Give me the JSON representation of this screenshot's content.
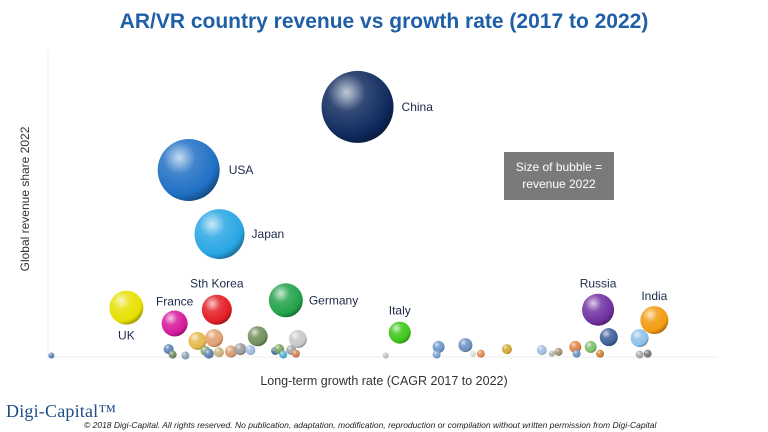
{
  "chart_data": {
    "type": "scatter",
    "title": "AR/VR country revenue vs growth rate (2017 to 2022)",
    "xlabel": "Long-term growth rate (CAGR 2017 to 2022)",
    "ylabel": "Global revenue share 2022",
    "xlim": [
      0,
      100
    ],
    "ylim": [
      0,
      100
    ],
    "note": "Size of bubble = revenue 2022",
    "legend": "none",
    "series": [
      {
        "name": "China",
        "x": 46.2,
        "y": 82.0,
        "size": 36,
        "color": "#0f2a5e"
      },
      {
        "name": "USA",
        "x": 21.0,
        "y": 61.3,
        "size": 31,
        "color": "#1f6fc4"
      },
      {
        "name": "Japan",
        "x": 25.6,
        "y": 40.3,
        "size": 25,
        "color": "#29a6e4"
      },
      {
        "name": "Sth Korea",
        "x": 25.2,
        "y": 15.5,
        "size": 15,
        "color": "#e31e24"
      },
      {
        "name": "Germany",
        "x": 35.5,
        "y": 18.6,
        "size": 17,
        "color": "#22a24a"
      },
      {
        "name": "UK",
        "x": 11.7,
        "y": 16.2,
        "size": 17,
        "color": "#e6e000"
      },
      {
        "name": "France",
        "x": 18.9,
        "y": 11.0,
        "size": 13,
        "color": "#d6199c"
      },
      {
        "name": "Italy",
        "x": 52.5,
        "y": 8.0,
        "size": 11,
        "color": "#3cc61a"
      },
      {
        "name": "Russia",
        "x": 82.1,
        "y": 15.5,
        "size": 16,
        "color": "#7030a0"
      },
      {
        "name": "India",
        "x": 90.5,
        "y": 12.1,
        "size": 14,
        "color": "#f29a0e"
      }
    ],
    "minor_points": [
      {
        "x": 0.5,
        "y": 0.5,
        "size": 3,
        "color": "#5a82b8"
      },
      {
        "x": 18.0,
        "y": 2.6,
        "size": 5,
        "color": "#5a82b8"
      },
      {
        "x": 18.6,
        "y": 0.8,
        "size": 4,
        "color": "#6d8a5e"
      },
      {
        "x": 20.5,
        "y": 0.5,
        "size": 4,
        "color": "#8aa0b8"
      },
      {
        "x": 22.3,
        "y": 5.3,
        "size": 9,
        "color": "#e6b84a"
      },
      {
        "x": 24.8,
        "y": 6.2,
        "size": 9,
        "color": "#e3a070"
      },
      {
        "x": 23.5,
        "y": 2.0,
        "size": 5,
        "color": "#88aa66"
      },
      {
        "x": 24.0,
        "y": 1.1,
        "size": 5,
        "color": "#5f7fb0"
      },
      {
        "x": 25.5,
        "y": 1.6,
        "size": 5,
        "color": "#c9b47a"
      },
      {
        "x": 27.3,
        "y": 1.8,
        "size": 6,
        "color": "#d89c6e"
      },
      {
        "x": 28.7,
        "y": 2.6,
        "size": 6,
        "color": "#999999"
      },
      {
        "x": 31.3,
        "y": 6.8,
        "size": 10,
        "color": "#6f8f5a"
      },
      {
        "x": 30.2,
        "y": 2.3,
        "size": 5,
        "color": "#9fbce0"
      },
      {
        "x": 33.9,
        "y": 2.0,
        "size": 4,
        "color": "#4a6fa3"
      },
      {
        "x": 34.5,
        "y": 2.6,
        "size": 5,
        "color": "#7aa05a"
      },
      {
        "x": 35.1,
        "y": 0.8,
        "size": 4,
        "color": "#55b0d8"
      },
      {
        "x": 37.3,
        "y": 5.9,
        "size": 9,
        "color": "#c8c8c8"
      },
      {
        "x": 36.3,
        "y": 2.3,
        "size": 5,
        "color": "#a1a1a1"
      },
      {
        "x": 37.0,
        "y": 1.1,
        "size": 4,
        "color": "#d08050"
      },
      {
        "x": 50.4,
        "y": 0.5,
        "size": 3,
        "color": "#c0c0c0"
      },
      {
        "x": 58.3,
        "y": 3.3,
        "size": 6,
        "color": "#6a94c8"
      },
      {
        "x": 58.0,
        "y": 0.8,
        "size": 4,
        "color": "#7aa0c8"
      },
      {
        "x": 62.3,
        "y": 3.9,
        "size": 7,
        "color": "#6b8fc0"
      },
      {
        "x": 63.4,
        "y": 1.1,
        "size": 3,
        "color": "#dddddd"
      },
      {
        "x": 64.6,
        "y": 1.1,
        "size": 4,
        "color": "#e08850"
      },
      {
        "x": 68.5,
        "y": 2.6,
        "size": 5,
        "color": "#d4a830"
      },
      {
        "x": 73.7,
        "y": 2.3,
        "size": 5,
        "color": "#9dbde0"
      },
      {
        "x": 75.2,
        "y": 1.1,
        "size": 3,
        "color": "#b0b0b0"
      },
      {
        "x": 76.2,
        "y": 1.7,
        "size": 4,
        "color": "#a09070"
      },
      {
        "x": 78.7,
        "y": 3.3,
        "size": 6,
        "color": "#e08040"
      },
      {
        "x": 78.9,
        "y": 1.1,
        "size": 4,
        "color": "#6a90c8"
      },
      {
        "x": 81.0,
        "y": 3.3,
        "size": 6,
        "color": "#7cbf6a"
      },
      {
        "x": 82.4,
        "y": 1.1,
        "size": 4,
        "color": "#d08030"
      },
      {
        "x": 83.7,
        "y": 6.5,
        "size": 9,
        "color": "#3c5f9a"
      },
      {
        "x": 88.3,
        "y": 6.2,
        "size": 9,
        "color": "#8ec0e8"
      },
      {
        "x": 88.3,
        "y": 0.8,
        "size": 4,
        "color": "#aaaaaa"
      },
      {
        "x": 89.5,
        "y": 1.1,
        "size": 4,
        "color": "#777777"
      }
    ]
  },
  "logo": "Digi-Capital™",
  "copyright": "© 2018 Digi-Capital. All rights reserved. No publication, adaptation, modification, reproduction or compilation without written permission from Digi-Capital"
}
